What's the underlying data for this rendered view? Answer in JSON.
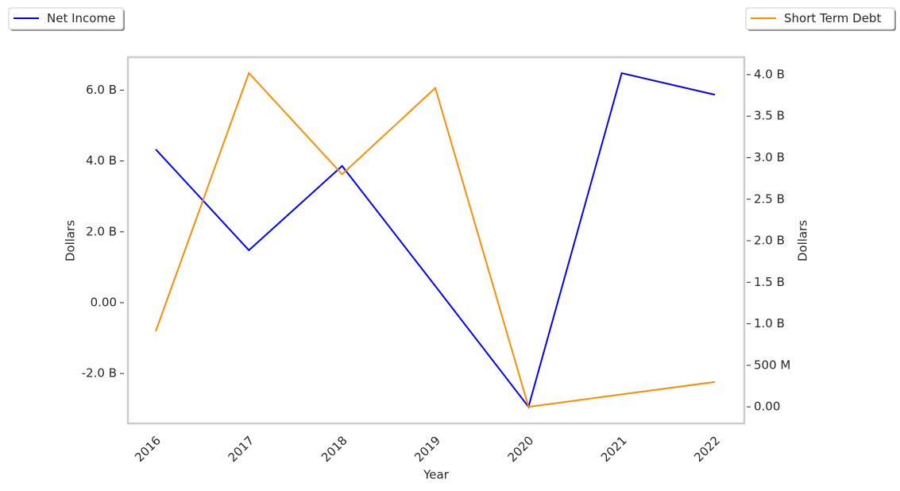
{
  "chart_data": {
    "type": "line",
    "categories": [
      "2016",
      "2017",
      "2018",
      "2019",
      "2020",
      "2021",
      "2022"
    ],
    "x_label": "Year",
    "y_label": "Dollars",
    "y2_label": "Dollars",
    "ylim": [
      -3410000000,
      6930000000
    ],
    "yticks": [
      {
        "value": -2000000000,
        "label": "-2.0 B"
      },
      {
        "value": 0,
        "label": "0.00"
      },
      {
        "value": 2000000000,
        "label": "2.0 B"
      },
      {
        "value": 4000000000,
        "label": "4.0 B"
      },
      {
        "value": 6000000000,
        "label": "6.0 B"
      }
    ],
    "y2lim": [
      -200000000,
      4210000000
    ],
    "y2ticks": [
      {
        "value": 0,
        "label": "0.00"
      },
      {
        "value": 500000000,
        "label": "500 M"
      },
      {
        "value": 1000000000,
        "label": "1.0 B"
      },
      {
        "value": 1500000000,
        "label": "1.5 B"
      },
      {
        "value": 2000000000,
        "label": "2.0 B"
      },
      {
        "value": 2500000000,
        "label": "2.5 B"
      },
      {
        "value": 3000000000,
        "label": "3.0 B"
      },
      {
        "value": 3500000000,
        "label": "3.5 B"
      },
      {
        "value": 4000000000,
        "label": "4.0 B"
      }
    ],
    "series": [
      {
        "name": "Net Income",
        "color": "#0000ff",
        "legend": "upper left",
        "values": [
          4330000000,
          1480000000,
          3860000000,
          470000000,
          -2940000000,
          6480000000,
          5870000000
        ]
      },
      {
        "name": "Short Term Debt",
        "color": "#ff8c00",
        "legend": "upper right",
        "axis": "y2",
        "values": [
          910000000,
          4020000000,
          2800000000,
          3840000000,
          0,
          150000000,
          300000000
        ]
      }
    ]
  }
}
